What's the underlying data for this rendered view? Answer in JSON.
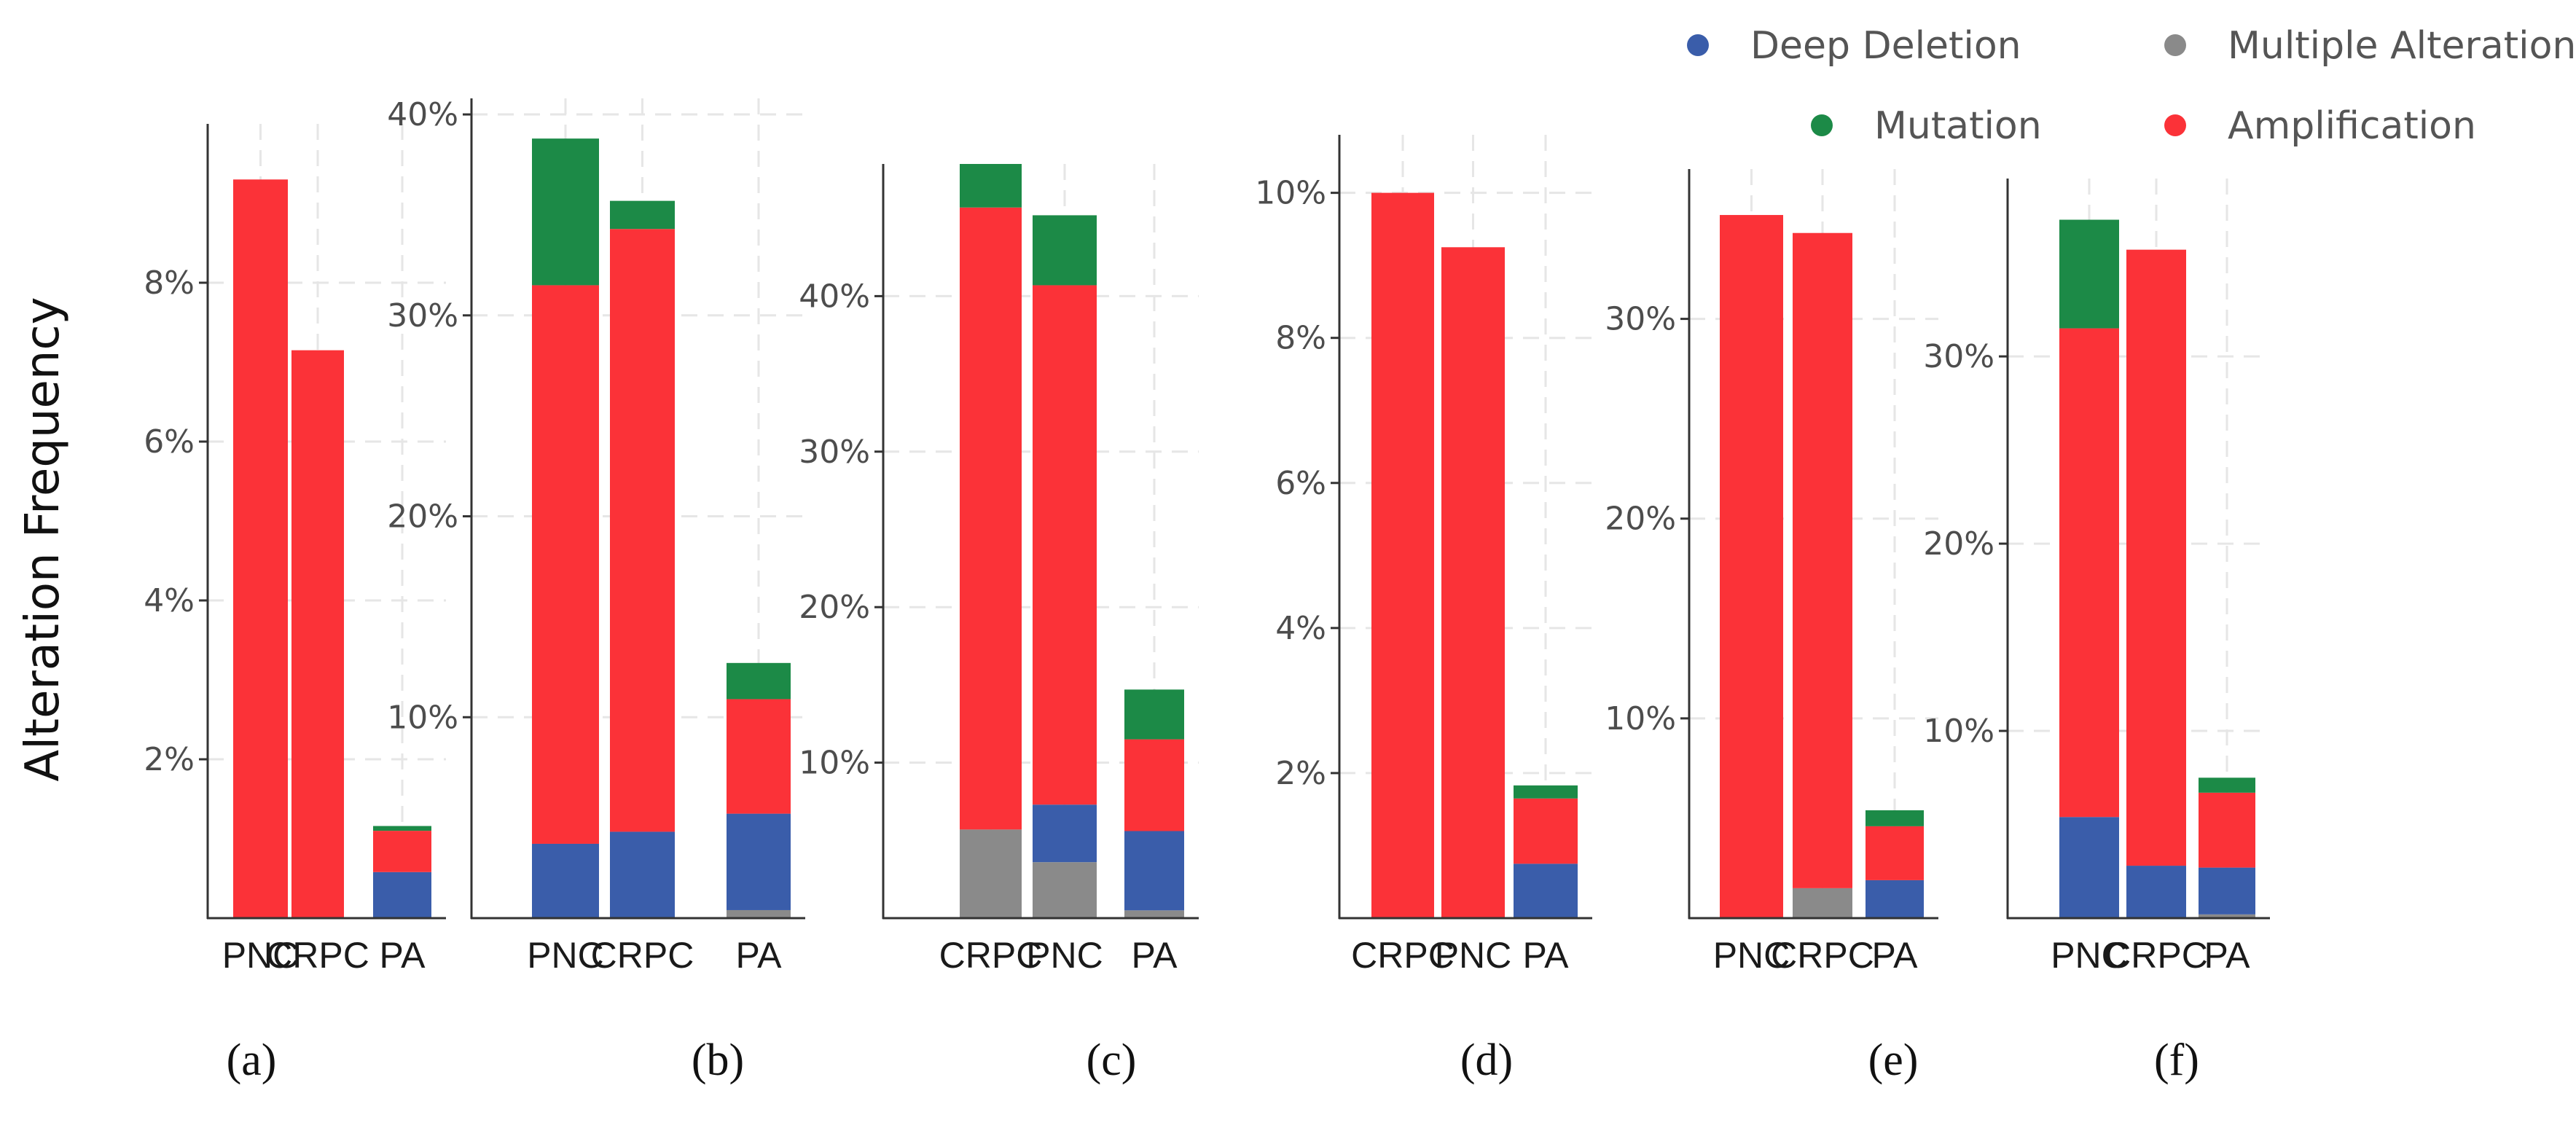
{
  "colors": {
    "deep_deletion": "#3a5daa",
    "multiple_alterations": "#8a8a8a",
    "mutation": "#1c8a47",
    "amplification": "#fb3238",
    "grid": "#e6e6e6",
    "axis": "#333333"
  },
  "y_axis_label": "Alteration Frequency",
  "legend": [
    {
      "key": "deep_deletion",
      "label": "Deep Deletion"
    },
    {
      "key": "multiple_alterations",
      "label": "Multiple Alterations"
    },
    {
      "key": "mutation",
      "label": "Mutation"
    },
    {
      "key": "amplification",
      "label": "Amplification"
    }
  ],
  "chart_data": [
    {
      "type": "bar",
      "stacked": true,
      "panel_label": "(a)",
      "ylim": [
        0,
        10
      ],
      "ticks": [
        2,
        4,
        6,
        8
      ],
      "tick_labels": [
        "2%",
        "4%",
        "6%",
        "8%"
      ],
      "categories": [
        "PNC",
        "CRPC",
        "PA"
      ],
      "series": [
        {
          "name": "Multiple Alterations",
          "key": "multiple_alterations",
          "values": [
            0,
            0,
            0
          ]
        },
        {
          "name": "Deep Deletion",
          "key": "deep_deletion",
          "values": [
            0,
            0,
            0.58
          ]
        },
        {
          "name": "Amplification",
          "key": "amplification",
          "values": [
            9.3,
            7.15,
            0.52
          ]
        },
        {
          "name": "Mutation",
          "key": "mutation",
          "values": [
            0,
            0,
            0.06
          ]
        }
      ]
    },
    {
      "type": "bar",
      "stacked": true,
      "panel_label": "(b)",
      "ylim": [
        0,
        40.8
      ],
      "ticks": [
        10,
        20,
        30,
        40
      ],
      "tick_labels": [
        "10%",
        "20%",
        "30%",
        "40%"
      ],
      "categories": [
        "PNC",
        "CRPC",
        "PA"
      ],
      "series": [
        {
          "name": "Multiple Alterations",
          "key": "multiple_alterations",
          "values": [
            0,
            0,
            0.4
          ]
        },
        {
          "name": "Deep Deletion",
          "key": "deep_deletion",
          "values": [
            3.7,
            4.3,
            4.8
          ]
        },
        {
          "name": "Amplification",
          "key": "amplification",
          "values": [
            27.8,
            30.0,
            5.7
          ]
        },
        {
          "name": "Mutation",
          "key": "mutation",
          "values": [
            7.3,
            1.4,
            1.8
          ]
        }
      ]
    },
    {
      "type": "bar",
      "stacked": true,
      "panel_label": "(c)",
      "ylim": [
        0,
        48.5
      ],
      "ticks": [
        10,
        20,
        30,
        40
      ],
      "tick_labels": [
        "10%",
        "20%",
        "30%",
        "40%"
      ],
      "categories": [
        "CRPC",
        "PNC",
        "PA"
      ],
      "series": [
        {
          "name": "Multiple Alterations",
          "key": "multiple_alterations",
          "values": [
            5.7,
            3.6,
            0.5
          ]
        },
        {
          "name": "Deep Deletion",
          "key": "deep_deletion",
          "values": [
            0,
            3.7,
            5.1
          ]
        },
        {
          "name": "Amplification",
          "key": "amplification",
          "values": [
            40.0,
            33.4,
            5.9
          ]
        },
        {
          "name": "Mutation",
          "key": "mutation",
          "values": [
            2.8,
            4.5,
            3.2
          ]
        }
      ]
    },
    {
      "type": "bar",
      "stacked": true,
      "panel_label": "(d)",
      "ylim": [
        0,
        10.8
      ],
      "ticks": [
        2,
        4,
        6,
        8,
        10
      ],
      "tick_labels": [
        "2%",
        "4%",
        "6%",
        "8%",
        "10%"
      ],
      "categories": [
        "CRPC",
        "PNC",
        "PA"
      ],
      "series": [
        {
          "name": "Multiple Alterations",
          "key": "multiple_alterations",
          "values": [
            0,
            0,
            0
          ]
        },
        {
          "name": "Deep Deletion",
          "key": "deep_deletion",
          "values": [
            0,
            0,
            0.75
          ]
        },
        {
          "name": "Amplification",
          "key": "amplification",
          "values": [
            10.0,
            9.25,
            0.9
          ]
        },
        {
          "name": "Mutation",
          "key": "mutation",
          "values": [
            0,
            0,
            0.18
          ]
        }
      ]
    },
    {
      "type": "bar",
      "stacked": true,
      "panel_label": "(e)",
      "ylim": [
        0,
        37.5
      ],
      "ticks": [
        10,
        20,
        30
      ],
      "tick_labels": [
        "10%",
        "20%",
        "30%"
      ],
      "categories": [
        "PNC",
        "CRPC",
        "PA"
      ],
      "series": [
        {
          "name": "Multiple Alterations",
          "key": "multiple_alterations",
          "values": [
            0,
            1.5,
            0
          ]
        },
        {
          "name": "Deep Deletion",
          "key": "deep_deletion",
          "values": [
            0,
            0,
            1.9
          ]
        },
        {
          "name": "Amplification",
          "key": "amplification",
          "values": [
            35.2,
            32.8,
            2.7
          ]
        },
        {
          "name": "Mutation",
          "key": "mutation",
          "values": [
            0,
            0,
            0.8
          ]
        }
      ]
    },
    {
      "type": "bar",
      "stacked": true,
      "panel_label": "(f)",
      "ylim": [
        0,
        39.5
      ],
      "ticks": [
        10,
        20,
        30
      ],
      "tick_labels": [
        "10%",
        "20%",
        "30%"
      ],
      "categories": [
        "PNC",
        "CRPC",
        "PA"
      ],
      "series": [
        {
          "name": "Multiple Alterations",
          "key": "multiple_alterations",
          "values": [
            0,
            0,
            0.2
          ]
        },
        {
          "name": "Deep Deletion",
          "key": "deep_deletion",
          "values": [
            5.4,
            2.8,
            2.5
          ]
        },
        {
          "name": "Amplification",
          "key": "amplification",
          "values": [
            26.1,
            32.9,
            4.0
          ]
        },
        {
          "name": "Mutation",
          "key": "mutation",
          "values": [
            5.8,
            0,
            0.8
          ]
        }
      ]
    }
  ]
}
